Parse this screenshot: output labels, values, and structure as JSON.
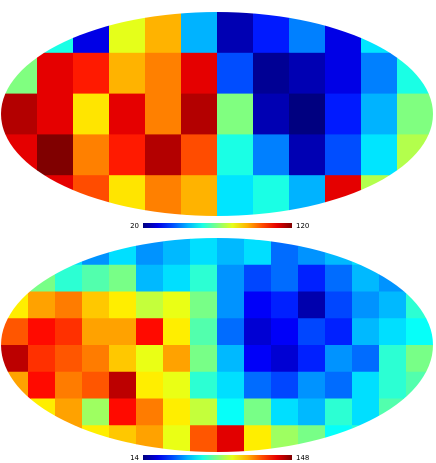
{
  "chart_data": [
    {
      "type": "heatmap",
      "projection": "mollweide",
      "colormap": "jet",
      "clim": [
        20,
        120
      ],
      "colorbar_ticks": [
        20,
        120
      ],
      "values": [
        [
          75,
          60,
          30,
          80,
          90,
          50,
          25,
          35,
          45,
          30,
          55,
          60
        ],
        [
          70,
          110,
          105,
          90,
          95,
          110,
          40,
          22,
          25,
          30,
          45,
          60
        ],
        [
          115,
          110,
          85,
          110,
          95,
          115,
          70,
          25,
          20,
          35,
          50,
          70
        ],
        [
          110,
          120,
          95,
          105,
          115,
          100,
          60,
          45,
          25,
          40,
          55,
          75
        ],
        [
          95,
          110,
          100,
          85,
          95,
          90,
          55,
          60,
          50,
          110,
          75,
          55
        ]
      ]
    },
    {
      "type": "heatmap",
      "projection": "mollweide",
      "colormap": "jet",
      "clim": [
        14,
        148
      ],
      "colorbar_ticks": [
        14,
        148
      ],
      "values": [
        [
          90,
          70,
          60,
          50,
          60,
          50,
          55,
          60,
          55,
          60,
          45,
          50,
          55,
          60,
          55,
          65
        ],
        [
          85,
          80,
          70,
          75,
          80,
          55,
          60,
          70,
          50,
          40,
          45,
          35,
          45,
          55,
          50,
          60
        ],
        [
          100,
          110,
          115,
          105,
          100,
          90,
          95,
          80,
          50,
          30,
          35,
          20,
          40,
          50,
          55,
          70
        ],
        [
          120,
          130,
          125,
          110,
          110,
          130,
          100,
          75,
          45,
          25,
          30,
          40,
          35,
          55,
          60,
          65
        ],
        [
          140,
          125,
          120,
          115,
          105,
          95,
          110,
          80,
          55,
          30,
          25,
          35,
          50,
          45,
          70,
          80
        ],
        [
          110,
          130,
          115,
          120,
          140,
          100,
          95,
          70,
          60,
          45,
          40,
          50,
          45,
          60,
          70,
          75
        ],
        [
          95,
          100,
          110,
          85,
          130,
          115,
          100,
          90,
          65,
          80,
          60,
          55,
          70,
          60,
          75,
          80
        ],
        [
          100,
          95,
          110,
          100,
          105,
          110,
          95,
          120,
          135,
          100,
          85,
          80,
          65,
          70,
          75,
          80
        ]
      ]
    }
  ]
}
